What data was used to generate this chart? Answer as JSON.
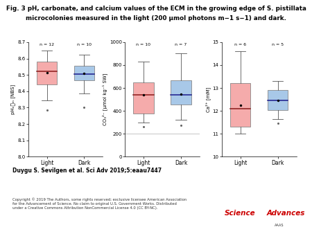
{
  "title_line1": "Fig. 3 pH, carbonate, and calcium values of the ECM in the growing edge of S. pistillata",
  "title_line2": "microcolonies measured in the light (200 μmol photons m−1 s−1) and dark.",
  "panels": [
    {
      "ylabel": "pHₑ⌸ₘ [NBS]",
      "xlabel_light": "Light",
      "xlabel_dark": "Dark",
      "n_light": 12,
      "n_dark": 10,
      "ylim": [
        8.0,
        8.7
      ],
      "yticks": [
        8.0,
        8.1,
        8.2,
        8.3,
        8.4,
        8.5,
        8.6,
        8.7
      ],
      "hline": 8.0,
      "light": {
        "median": 8.52,
        "q1": 8.44,
        "q3": 8.58,
        "whislo": 8.345,
        "whishi": 8.648,
        "mean": 8.515,
        "fliers": [
          8.285
        ]
      },
      "dark": {
        "median": 8.505,
        "q1": 8.465,
        "q3": 8.555,
        "whislo": 8.385,
        "whishi": 8.625,
        "mean": 8.51,
        "fliers": [
          8.3
        ]
      }
    },
    {
      "ylabel": "CO₃²⁻ [μmol kg⁻¹ SW]",
      "xlabel_light": "Light",
      "xlabel_dark": "Dark",
      "n_light": 10,
      "n_dark": 7,
      "ylim": [
        0,
        1000
      ],
      "yticks": [
        0,
        200,
        400,
        600,
        800,
        1000
      ],
      "hline": 200,
      "light": {
        "median": 540,
        "q1": 380,
        "q3": 650,
        "whislo": 300,
        "whishi": 830,
        "mean": 540,
        "fliers": [
          265
        ]
      },
      "dark": {
        "median": 540,
        "q1": 455,
        "q3": 665,
        "whislo": 320,
        "whishi": 900,
        "mean": 545,
        "fliers": [
          275
        ]
      }
    },
    {
      "ylabel": "Ca²⁺ [mM]",
      "xlabel_light": "Light",
      "xlabel_dark": "Dark",
      "n_light": 6,
      "n_dark": 5,
      "ylim": [
        10,
        15
      ],
      "yticks": [
        10,
        11,
        12,
        13,
        14,
        15
      ],
      "hline": 10,
      "light": {
        "median": 12.1,
        "q1": 11.3,
        "q3": 13.2,
        "whislo": 11.0,
        "whishi": 14.6,
        "mean": 12.25,
        "fliers": []
      },
      "dark": {
        "median": 12.45,
        "q1": 12.05,
        "q3": 12.9,
        "whislo": 11.65,
        "whishi": 13.3,
        "mean": 12.45,
        "fliers": [
          11.45
        ]
      }
    }
  ],
  "color_light": "#F5ABAB",
  "color_dark": "#A8C8E8",
  "median_color_light": "#8B1A1A",
  "median_color_dark": "#1A1A8B",
  "bg_color": "#FFFFFF",
  "footnote": "Duygu S. Sevilgen et al. Sci Adv 2019;5:eaau7447",
  "copyright": "Copyright © 2019 The Authors, some rights reserved; exclusive licensee American Association\nfor the Advancement of Science. No claim to original U.S. Government Works. Distributed\nunder a Creative Commons Attribution NonCommercial License 4.0 (CC BY-NC)."
}
